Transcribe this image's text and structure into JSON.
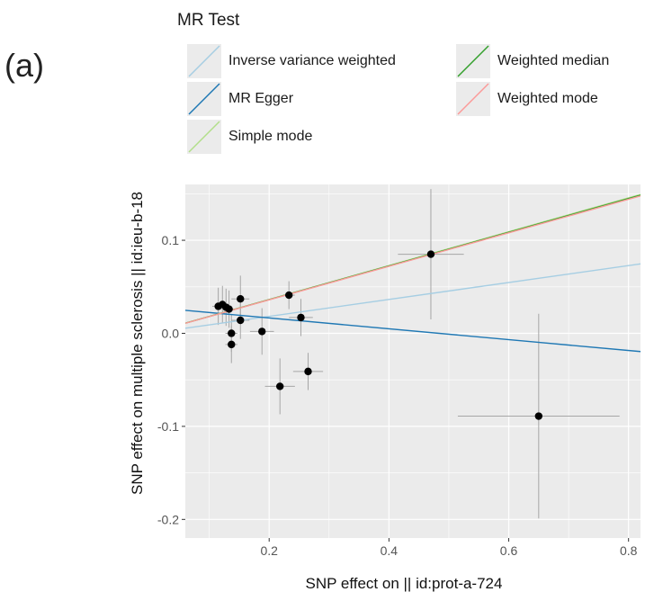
{
  "panel_label": "(a)",
  "colors": {
    "panel_bg": "#ebebeb",
    "grid": "#ffffff",
    "point": "#000000",
    "errorbar": "#a6a6a6",
    "ivw": "#a6cee3",
    "mr_egger": "#1f78b4",
    "simple_mode": "#b2df8a",
    "weighted_median": "#33a02c",
    "weighted_mode": "#fb9a99"
  },
  "chart_data": {
    "type": "scatter",
    "title": "",
    "xlabel": "SNP effect on  || id:prot-a-724",
    "ylabel": "SNP effect on multiple sclerosis || id:ieu-b-18",
    "xlim": [
      0.06,
      0.82
    ],
    "ylim": [
      -0.22,
      0.16
    ],
    "x_ticks": [
      0.2,
      0.4,
      0.6,
      0.8
    ],
    "x_tick_labels": [
      "0.2",
      "0.4",
      "0.6",
      "0.8"
    ],
    "y_ticks": [
      0.1,
      0.0,
      -0.1,
      -0.2
    ],
    "y_tick_labels": [
      "0.1",
      "0.0",
      "-0.1",
      "-0.2"
    ],
    "grid": true,
    "legend": {
      "title": "MR Test",
      "position": "top",
      "entries": [
        {
          "label": "Inverse variance weighted",
          "color_key": "ivw"
        },
        {
          "label": "MR Egger",
          "color_key": "mr_egger"
        },
        {
          "label": "Simple mode",
          "color_key": "simple_mode"
        },
        {
          "label": "Weighted median",
          "color_key": "weighted_median"
        },
        {
          "label": "Weighted mode",
          "color_key": "weighted_mode"
        }
      ]
    },
    "points": [
      {
        "x": 0.115,
        "y": 0.029,
        "xerr": 0.01,
        "yerr": 0.02
      },
      {
        "x": 0.122,
        "y": 0.031,
        "xerr": 0.01,
        "yerr": 0.02
      },
      {
        "x": 0.128,
        "y": 0.028,
        "xerr": 0.01,
        "yerr": 0.02
      },
      {
        "x": 0.133,
        "y": 0.026,
        "xerr": 0.012,
        "yerr": 0.02
      },
      {
        "x": 0.137,
        "y": 0.0,
        "xerr": 0.01,
        "yerr": 0.02
      },
      {
        "x": 0.137,
        "y": -0.012,
        "xerr": 0.01,
        "yerr": 0.02
      },
      {
        "x": 0.152,
        "y": 0.037,
        "xerr": 0.015,
        "yerr": 0.025
      },
      {
        "x": 0.152,
        "y": 0.014,
        "xerr": 0.015,
        "yerr": 0.02
      },
      {
        "x": 0.188,
        "y": 0.002,
        "xerr": 0.02,
        "yerr": 0.025
      },
      {
        "x": 0.218,
        "y": -0.057,
        "xerr": 0.025,
        "yerr": 0.03
      },
      {
        "x": 0.233,
        "y": 0.041,
        "xerr": 0.01,
        "yerr": 0.015
      },
      {
        "x": 0.253,
        "y": 0.017,
        "xerr": 0.02,
        "yerr": 0.02
      },
      {
        "x": 0.265,
        "y": -0.041,
        "xerr": 0.025,
        "yerr": 0.02
      },
      {
        "x": 0.47,
        "y": 0.085,
        "xerr": 0.055,
        "yerr": 0.07
      },
      {
        "x": 0.65,
        "y": -0.089,
        "xerr": 0.135,
        "yerr": 0.11
      }
    ],
    "lines": [
      {
        "name": "Inverse variance weighted",
        "color_key": "ivw",
        "intercept": 0.0,
        "slope": 0.091
      },
      {
        "name": "MR Egger",
        "color_key": "mr_egger",
        "intercept": 0.0282,
        "slope": -0.0583
      },
      {
        "name": "Simple mode",
        "color_key": "simple_mode",
        "intercept": 0.0,
        "slope": 0.182
      },
      {
        "name": "Weighted median",
        "color_key": "weighted_median",
        "intercept": 0.0,
        "slope": 0.181
      },
      {
        "name": "Weighted mode",
        "color_key": "weighted_mode",
        "intercept": 0.0,
        "slope": 0.18
      }
    ]
  }
}
